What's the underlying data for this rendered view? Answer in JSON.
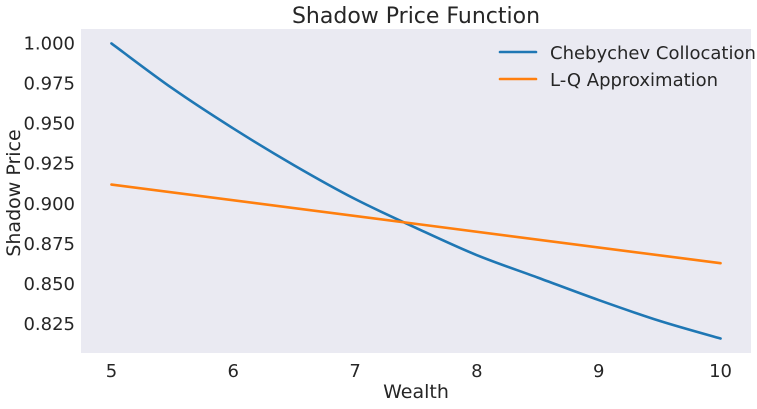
{
  "chart_data": {
    "type": "line",
    "title": "Shadow Price Function",
    "xlabel": "Wealth",
    "ylabel": "Shadow Price",
    "xlim": [
      4.75,
      10.25
    ],
    "ylim": [
      0.807,
      1.009
    ],
    "xticks": [
      5,
      6,
      7,
      8,
      9,
      10
    ],
    "yticks": [
      0.825,
      0.85,
      0.875,
      0.9,
      0.925,
      0.95,
      0.975,
      1.0
    ],
    "ytick_labels": [
      "0.825",
      "0.850",
      "0.875",
      "0.900",
      "0.925",
      "0.950",
      "0.975",
      "1.000"
    ],
    "grid": false,
    "legend_position": "top-right",
    "background": "#eaeaf2",
    "series": [
      {
        "name": "Chebychev Collocation",
        "color": "#1f77b4",
        "x": [
          5,
          5.5,
          6,
          6.5,
          7,
          7.5,
          8,
          8.5,
          9,
          9.5,
          10
        ],
        "y": [
          1.0,
          0.972,
          0.947,
          0.924,
          0.903,
          0.885,
          0.868,
          0.854,
          0.84,
          0.827,
          0.816
        ]
      },
      {
        "name": "L-Q Approximation",
        "color": "#ff7f0e",
        "x": [
          5,
          10
        ],
        "y": [
          0.912,
          0.863
        ]
      }
    ]
  }
}
